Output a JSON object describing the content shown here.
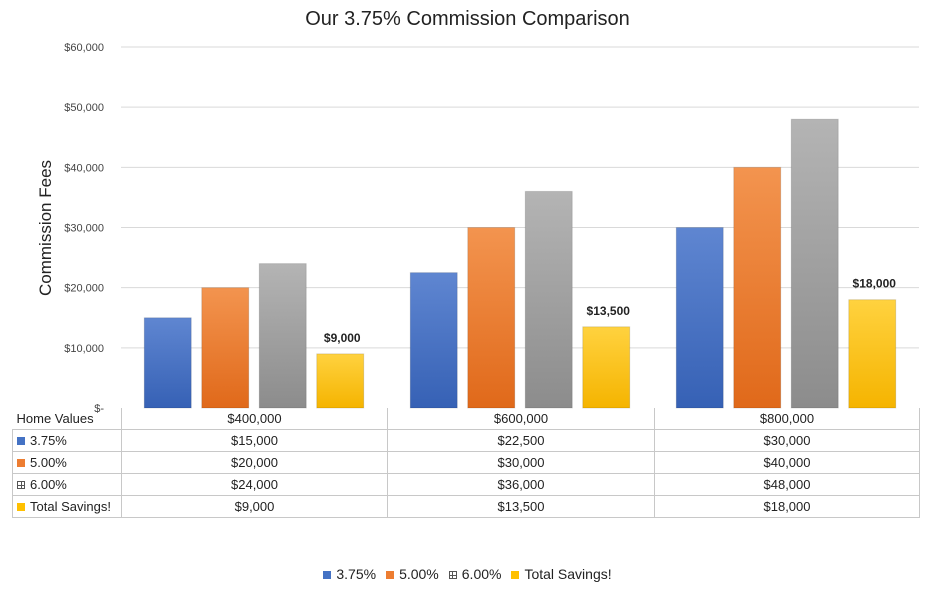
{
  "chart_data": {
    "type": "bar",
    "title": "Our 3.75% Commission Comparison",
    "xlabel": "",
    "ylabel": "Commission Fees",
    "ylim": [
      0,
      60000
    ],
    "yticks": [
      "$-",
      "$10,000",
      "$20,000",
      "$30,000",
      "$40,000",
      "$50,000",
      "$60,000"
    ],
    "grid": true,
    "legend_position": "bottom",
    "categories_header": "Home Values",
    "categories": [
      "$400,000",
      "$600,000",
      "$800,000"
    ],
    "series": [
      {
        "name": "3.75%",
        "color": "#4472c4",
        "values": [
          15000,
          22500,
          30000
        ],
        "display": [
          "$15,000",
          "$22,500",
          "$30,000"
        ]
      },
      {
        "name": "5.00%",
        "color": "#ed7d31",
        "values": [
          20000,
          30000,
          40000
        ],
        "display": [
          "$20,000",
          "$30,000",
          "$40,000"
        ]
      },
      {
        "name": "6.00%",
        "color": "#a5a5a5",
        "values": [
          24000,
          36000,
          48000
        ],
        "display": [
          "$24,000",
          "$36,000",
          "$48,000"
        ]
      },
      {
        "name": "Total Savings!",
        "color": "#ffc000",
        "values": [
          9000,
          13500,
          18000
        ],
        "display": [
          "$9,000",
          "$13,500",
          "$18,000"
        ]
      }
    ],
    "data_labels": {
      "series_index": 3,
      "labels": [
        "$9,000",
        "$13,500",
        "$18,000"
      ]
    }
  }
}
